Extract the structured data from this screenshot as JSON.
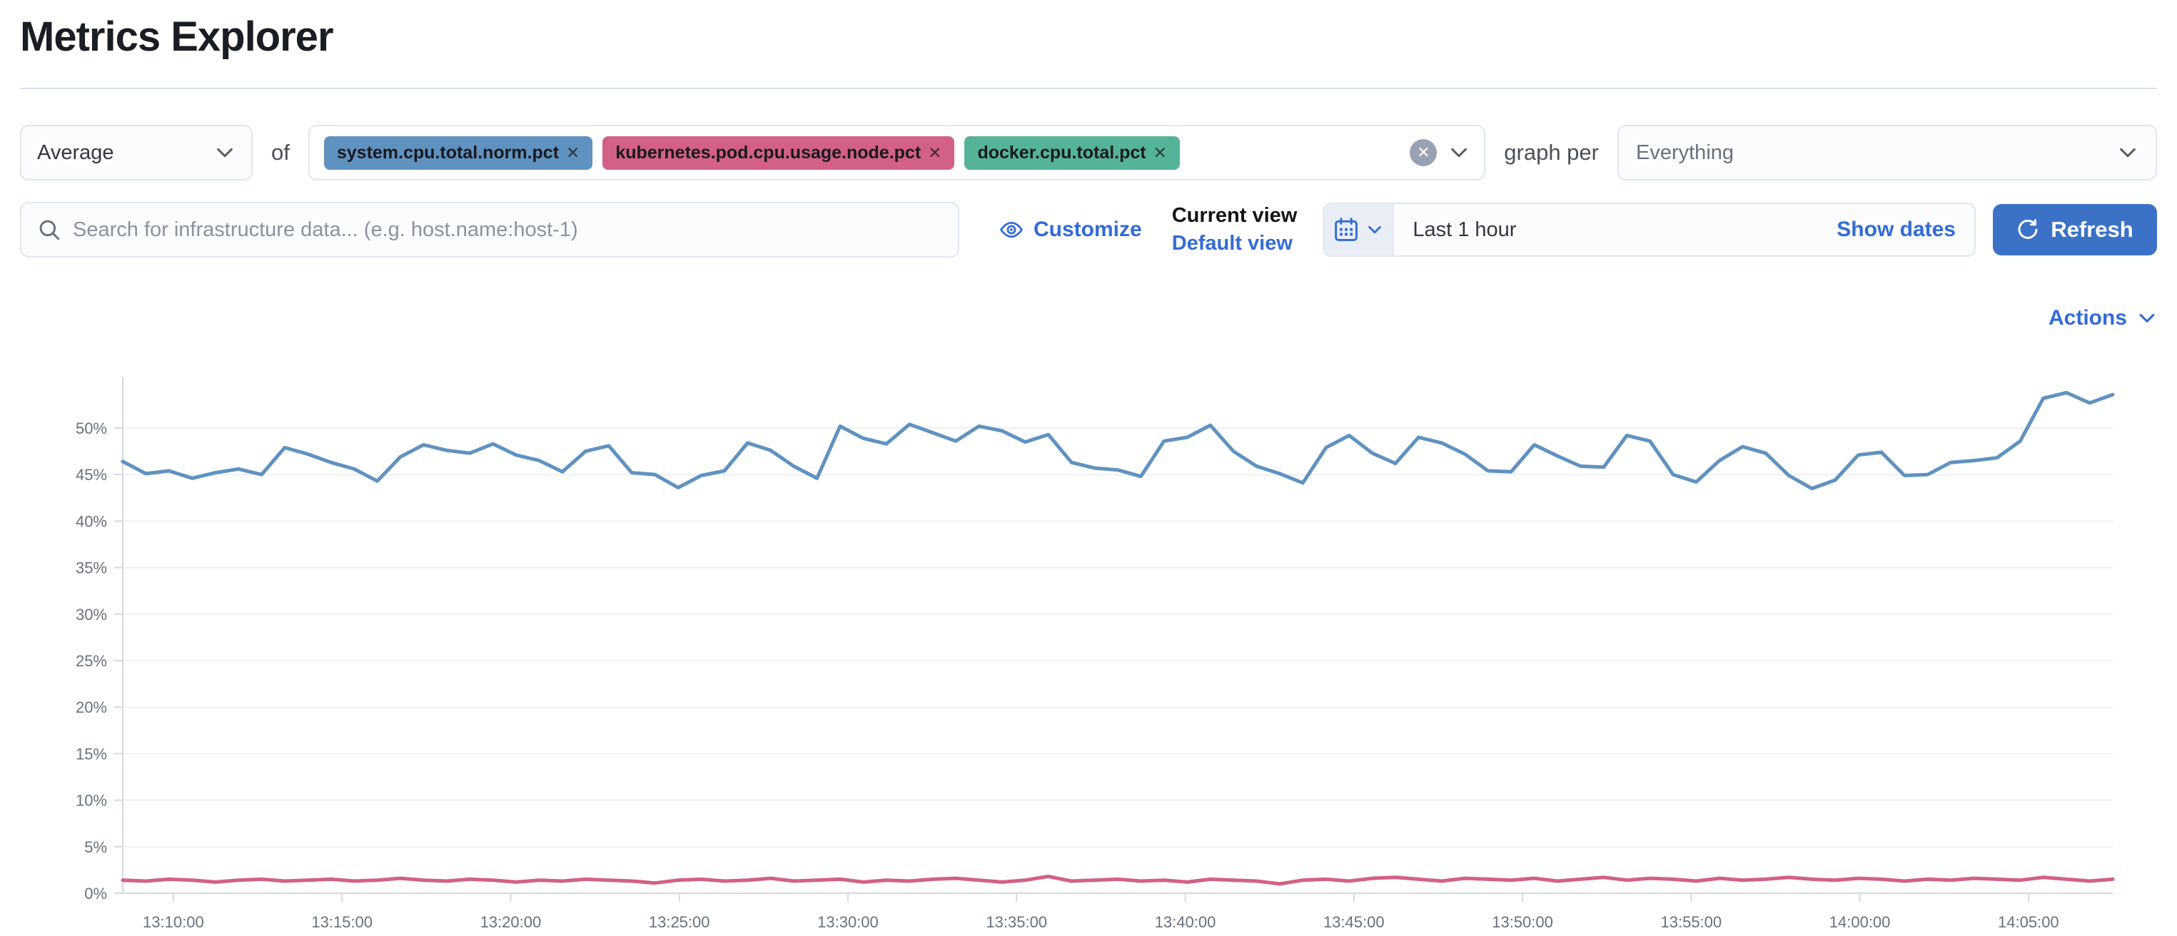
{
  "page": {
    "title": "Metrics Explorer"
  },
  "toolbar": {
    "aggregation": {
      "value": "Average"
    },
    "of_label": "of",
    "metrics": [
      {
        "label": "system.cpu.total.norm.pct",
        "color": "#6092C0"
      },
      {
        "label": "kubernetes.pod.cpu.usage.node.pct",
        "color": "#D36086"
      },
      {
        "label": "docker.cpu.total.pct",
        "color": "#54B399"
      }
    ],
    "clear_icon": "x-circle",
    "graph_per_label": "graph per",
    "graph_per": {
      "value": "Everything"
    }
  },
  "search": {
    "placeholder": "Search for infrastructure data... (e.g. host.name:host-1)",
    "value": ""
  },
  "view_controls": {
    "customize_label": "Customize",
    "current_view_label": "Current view",
    "view_name": "Default view"
  },
  "time_picker": {
    "value": "Last 1 hour",
    "show_dates_label": "Show dates",
    "refresh_label": "Refresh"
  },
  "actions_label": "Actions",
  "chart_data": {
    "type": "line",
    "title": "",
    "xlabel": "",
    "ylabel": "",
    "ylim": [
      0,
      55.5
    ],
    "y_ticks": [
      "0%",
      "5%",
      "10%",
      "15%",
      "20%",
      "25%",
      "30%",
      "35%",
      "40%",
      "45%",
      "50%"
    ],
    "y_tick_values": [
      0,
      5,
      10,
      15,
      20,
      25,
      30,
      35,
      40,
      45,
      50
    ],
    "x_ticks": [
      "13:10:00",
      "13:15:00",
      "13:20:00",
      "13:25:00",
      "13:30:00",
      "13:35:00",
      "13:40:00",
      "13:45:00",
      "13:50:00",
      "13:55:00",
      "14:00:00",
      "14:05:00"
    ],
    "x_range_minutes": [
      "13:08:30",
      "14:07:30"
    ],
    "grid": true,
    "legend": "none",
    "series": [
      {
        "name": "system.cpu.total.norm.pct (avg)",
        "color": "#6092C0",
        "unit": "%",
        "values": [
          46.4,
          45.1,
          45.4,
          44.6,
          45.2,
          45.6,
          45.0,
          47.9,
          47.2,
          46.3,
          45.6,
          44.3,
          46.9,
          48.2,
          47.6,
          47.3,
          48.3,
          47.1,
          46.5,
          45.3,
          47.5,
          48.1,
          45.2,
          45.0,
          43.6,
          44.9,
          45.4,
          48.4,
          47.6,
          45.9,
          44.6,
          50.2,
          48.9,
          48.3,
          50.4,
          49.5,
          48.6,
          50.2,
          49.7,
          48.5,
          49.3,
          46.3,
          45.7,
          45.5,
          44.8,
          48.6,
          49.0,
          50.3,
          47.5,
          45.9,
          45.1,
          44.1,
          47.9,
          49.2,
          47.3,
          46.2,
          49.0,
          48.4,
          47.2,
          45.4,
          45.3,
          48.2,
          47.0,
          45.9,
          45.8,
          49.2,
          48.6,
          45.0,
          44.2,
          46.5,
          48.0,
          47.3,
          44.9,
          43.5,
          44.4,
          47.1,
          47.4,
          44.9,
          45.0,
          46.3,
          46.5,
          46.8,
          48.6,
          53.2,
          53.8,
          52.7,
          53.6
        ]
      },
      {
        "name": "kubernetes.pod.cpu.usage.node.pct / docker.cpu.total.pct (avg)",
        "color": "#D36086",
        "unit": "%",
        "values": [
          1.4,
          1.3,
          1.5,
          1.4,
          1.2,
          1.4,
          1.5,
          1.3,
          1.4,
          1.5,
          1.3,
          1.4,
          1.6,
          1.4,
          1.3,
          1.5,
          1.4,
          1.2,
          1.4,
          1.3,
          1.5,
          1.4,
          1.3,
          1.1,
          1.4,
          1.5,
          1.3,
          1.4,
          1.6,
          1.3,
          1.4,
          1.5,
          1.2,
          1.4,
          1.3,
          1.5,
          1.6,
          1.4,
          1.2,
          1.4,
          1.8,
          1.3,
          1.4,
          1.5,
          1.3,
          1.4,
          1.2,
          1.5,
          1.4,
          1.3,
          1.0,
          1.4,
          1.5,
          1.3,
          1.6,
          1.7,
          1.5,
          1.3,
          1.6,
          1.5,
          1.4,
          1.6,
          1.3,
          1.5,
          1.7,
          1.4,
          1.6,
          1.5,
          1.3,
          1.6,
          1.4,
          1.5,
          1.7,
          1.5,
          1.4,
          1.6,
          1.5,
          1.3,
          1.5,
          1.4,
          1.6,
          1.5,
          1.4,
          1.7,
          1.5,
          1.3,
          1.5
        ]
      }
    ]
  }
}
